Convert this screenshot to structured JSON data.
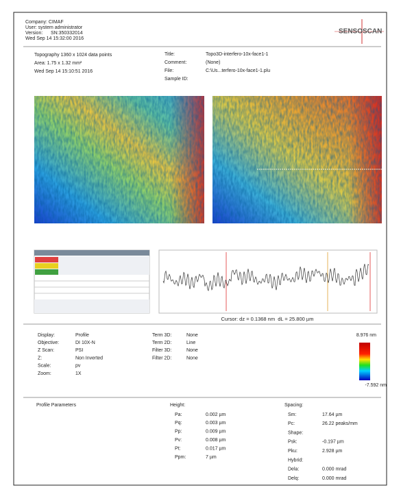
{
  "header": {
    "lines": [
      "Company: CIMAF",
      "User: system administrator",
      "Version:      SN:350332014",
      "Wed Sep 14 15:32:00 2016"
    ],
    "logo": "SENSOSCAN"
  },
  "measurement": {
    "lines": [
      "Topography 1360 x 1024 data points",
      "Area: 1.75 x 1.32 mm²",
      "Wed Sep 14 15:10:51 2016"
    ],
    "fields": [
      {
        "label": "Title:",
        "value": "Topo3D-interfero-10x-face1-1"
      },
      {
        "label": "Comment:",
        "value": "(None)"
      },
      {
        "label": "File:",
        "value": "C:\\Us...terfero-10x-face1-1.plu"
      },
      {
        "label": "Sample ID:"
      }
    ]
  },
  "cursor": "Cursor: dz = 0.1368 nm  dL = 25.800 µm",
  "settings": {
    "left": [
      {
        "label": "Display:",
        "value": "Profile"
      },
      {
        "label": "Objective:",
        "value": "DI 10X-N"
      },
      {
        "label": "Z Scan:",
        "value": "PSI"
      },
      {
        "label": "Z:",
        "value": "Non Inverted"
      },
      {
        "label": "Scale:",
        "value": "pv"
      },
      {
        "label": "Zoom:",
        "value": "1X"
      }
    ],
    "right": [
      {
        "label": "Term 3D:",
        "value": "None"
      },
      {
        "label": "Term 2D:",
        "value": "Line"
      },
      {
        "label": "Filter 3D:",
        "value": "None"
      },
      {
        "label": "Filter 2D:",
        "value": "None"
      }
    ]
  },
  "color_scale": {
    "max": "8.976 nm",
    "min": "-7.592 nm"
  },
  "parameters": {
    "title": "Profile Parameters",
    "height": {
      "title": "Height:",
      "rows": [
        {
          "label": "Pa:",
          "value": "0.002 µm"
        },
        {
          "label": "Pq:",
          "value": "0.003 µm"
        },
        {
          "label": "Pp:",
          "value": "0.009 µm"
        },
        {
          "label": "Pv:",
          "value": "0.008 µm"
        },
        {
          "label": "Pt:",
          "value": "0.017 µm"
        },
        {
          "label": "Ppm:",
          "value": "7 µm"
        }
      ]
    },
    "spacing": {
      "title": "Spacing:",
      "rows": [
        {
          "label": "Sm:",
          "value": "17.64 µm"
        },
        {
          "label": "Pc:",
          "value": "26.22 peaks/mm"
        },
        {
          "label": "Shape:"
        },
        {
          "label": "Psk:",
          "value": "-0.197 µm"
        },
        {
          "label": "Pku:",
          "value": "2.928 µm"
        },
        {
          "label": "Hybrid:"
        },
        {
          "label": "Dela:",
          "value": "0.000 mrad"
        },
        {
          "label": "Delq:",
          "value": "0.000 mrad"
        }
      ]
    }
  }
}
